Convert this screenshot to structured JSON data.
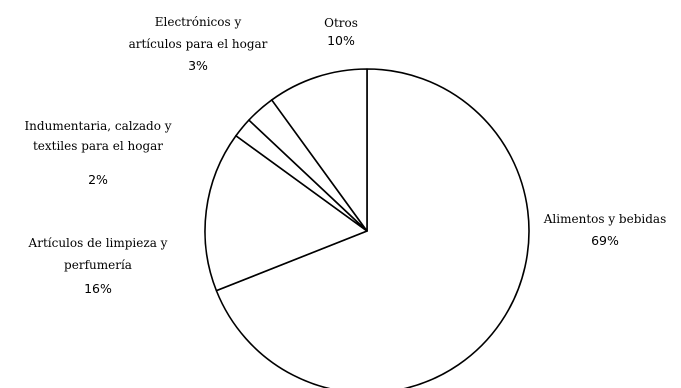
{
  "chart_data": {
    "type": "pie",
    "title": "",
    "start": "12 o'clock",
    "direction": "clockwise",
    "slice_fill": "#ffffff",
    "slice_stroke": "#000000",
    "slices": [
      {
        "label": "Alimentos y bebidas",
        "label_lines": [
          "Alimentos y bebidas"
        ],
        "value": 69,
        "value_label": "69%"
      },
      {
        "label": "Artículos de limpieza y perfumería",
        "label_lines": [
          "Artículos de limpieza y",
          "perfumería"
        ],
        "value": 16,
        "value_label": "16%"
      },
      {
        "label": "Indumentaria, calzado y textiles para el hogar",
        "label_lines": [
          "Indumentaria, calzado y",
          "textiles para el hogar"
        ],
        "value": 2,
        "value_label": "2%"
      },
      {
        "label": "Electrónicos y artículos para el hogar",
        "label_lines": [
          "Electrónicos y",
          "artículos para el hogar"
        ],
        "value": 3,
        "value_label": "3%"
      },
      {
        "label": "Otros",
        "label_lines": [
          "Otros"
        ],
        "value": 10,
        "value_label": "10%"
      }
    ]
  }
}
